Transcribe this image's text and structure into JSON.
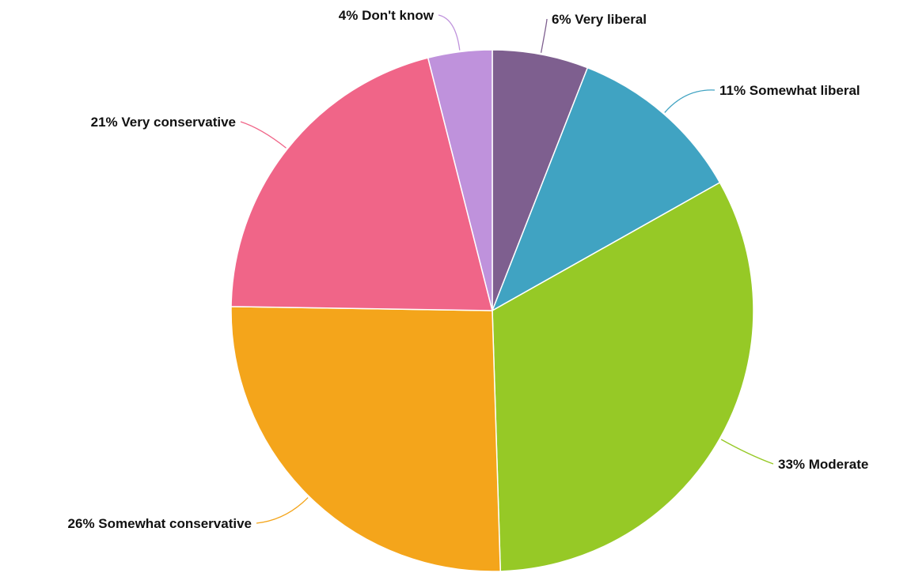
{
  "chart_data": {
    "type": "pie",
    "title": "",
    "start": "12 o'clock",
    "direction": "clockwise",
    "slices": [
      {
        "label": "6% Very liberal",
        "category": "Very liberal",
        "value": 6,
        "color": "#7e5f8f"
      },
      {
        "label": "11% Somewhat liberal",
        "category": "Somewhat liberal",
        "value": 11,
        "color": "#40a3c2"
      },
      {
        "label": "33% Moderate",
        "category": "Moderate",
        "value": 33,
        "color": "#96c926"
      },
      {
        "label": "26% Somewhat conservative",
        "category": "Somewhat conservative",
        "value": 26,
        "color": "#f4a51b"
      },
      {
        "label": "21% Very conservative",
        "category": "Very conservative",
        "value": 21,
        "color": "#f06588"
      },
      {
        "label": "4% Don't know",
        "category": "Don't know",
        "value": 4,
        "color": "#bf92dc"
      }
    ]
  }
}
